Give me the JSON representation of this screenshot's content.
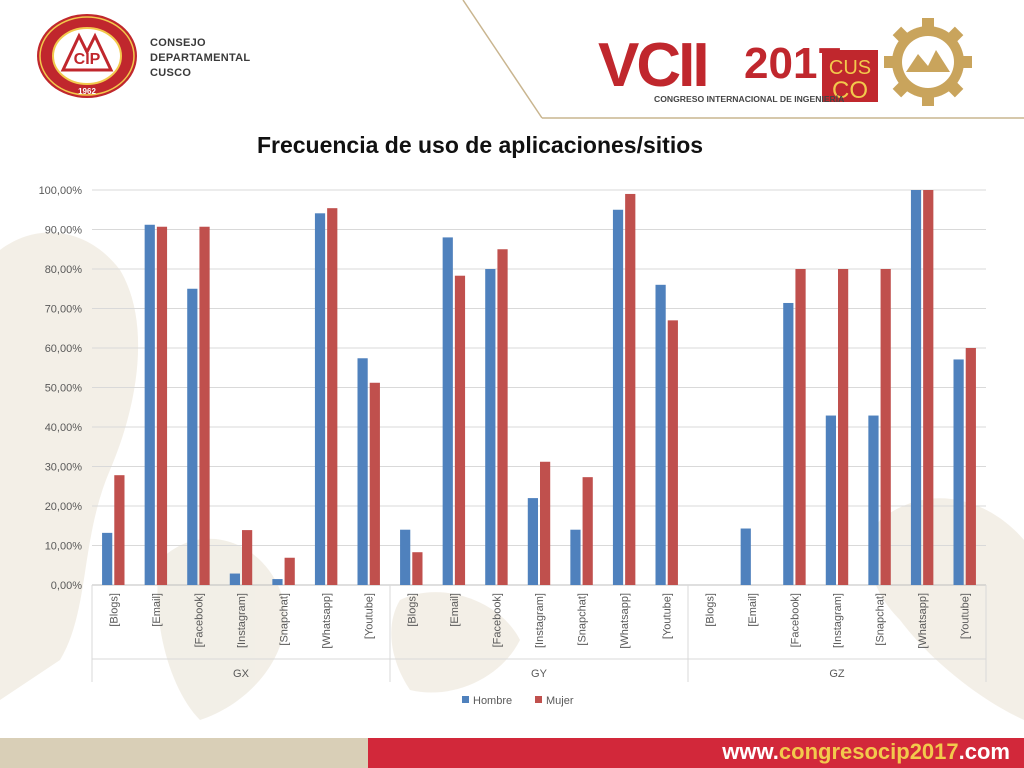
{
  "header": {
    "org_lines": [
      "CONSEJO",
      "DEPARTAMENTAL",
      "CUSCO"
    ],
    "seal_text": "COLEGIO DE INGENIEROS DEL PERÚ",
    "seal_year": "1962",
    "seal_initials": "CIP",
    "event_logo": {
      "roman": "VCII",
      "year": "2017",
      "city_top": "CUS",
      "city_bottom": "CO",
      "subtitle": "CONGRESO INTERNACIONAL DE INGENIERÍA"
    }
  },
  "chart_data": {
    "type": "bar",
    "title": "Frecuencia de uso de aplicaciones/sitios",
    "groups": [
      {
        "name": "GX",
        "categories": [
          "[Blogs]",
          "[Email]",
          "[Facebook]",
          "[Instagram]",
          "[Snapchat]",
          "[Whatsapp]",
          "[Youtube]"
        ]
      },
      {
        "name": "GY",
        "categories": [
          "[Blogs]",
          "[Email]",
          "[Facebook]",
          "[Instagram]",
          "[Snapchat]",
          "[Whatsapp]",
          "[Youtube]"
        ]
      },
      {
        "name": "GZ",
        "categories": [
          "[Blogs]",
          "[Email]",
          "[Facebook]",
          "[Instagram]",
          "[Snapchat]",
          "[Whatsapp]",
          "[Youtube]"
        ]
      }
    ],
    "series": [
      {
        "name": "Hombre",
        "color": "#4f81bd",
        "values": [
          13.2,
          91.2,
          75.0,
          2.9,
          1.5,
          94.1,
          57.4,
          14.0,
          88.0,
          80.0,
          22.0,
          14.0,
          95.0,
          76.0,
          0,
          14.3,
          71.4,
          42.9,
          42.9,
          100.0,
          57.1
        ]
      },
      {
        "name": "Mujer",
        "color": "#c0504d",
        "values": [
          27.8,
          90.7,
          90.7,
          13.9,
          6.9,
          95.4,
          51.2,
          8.3,
          78.3,
          85.0,
          31.2,
          27.3,
          99.0,
          67.0,
          0,
          0,
          80.0,
          80.0,
          80.0,
          100.0,
          60.0
        ]
      }
    ],
    "yticks": [
      "0,00%",
      "10,00%",
      "20,00%",
      "30,00%",
      "40,00%",
      "50,00%",
      "60,00%",
      "70,00%",
      "80,00%",
      "90,00%",
      "100,00%"
    ],
    "ylim": [
      0,
      100
    ],
    "grid": true,
    "legend": "bottom"
  },
  "footer": {
    "url_prefix": "www.",
    "url_highlight": "congresocip2017",
    "url_suffix": ".com"
  }
}
